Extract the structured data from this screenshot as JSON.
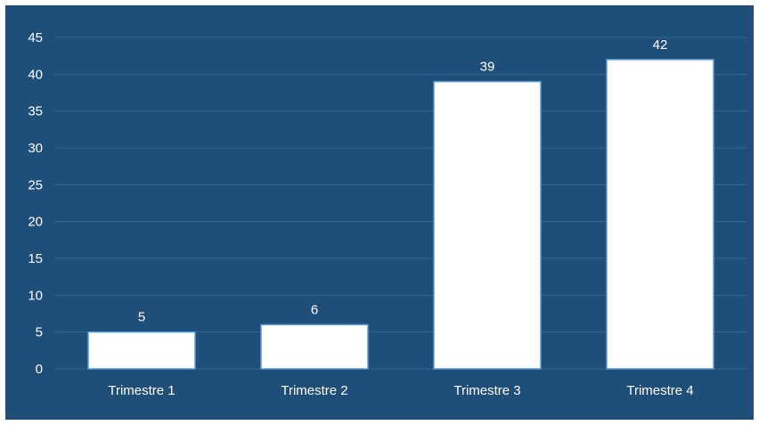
{
  "chart_data": {
    "type": "bar",
    "categories": [
      "Trimestre 1",
      "Trimestre 2",
      "Trimestre 3",
      "Trimestre 4"
    ],
    "values": [
      5,
      6,
      39,
      42
    ],
    "data_labels": [
      "5",
      "6",
      "39",
      "42"
    ],
    "title": "",
    "xlabel": "",
    "ylabel": "",
    "ylim": [
      0,
      45
    ],
    "yticks": [
      0,
      5,
      10,
      15,
      20,
      25,
      30,
      35,
      40,
      45
    ],
    "ytick_labels": [
      "0",
      "5",
      "10",
      "15",
      "20",
      "25",
      "30",
      "35",
      "40",
      "45"
    ],
    "grid": true,
    "legend": "none"
  },
  "colors": {
    "background": "#1f4e79",
    "bar_fill": "#ffffff",
    "bar_stroke": "#5b9bd5",
    "gridline": "#3a6590",
    "text": "#ffffff"
  }
}
